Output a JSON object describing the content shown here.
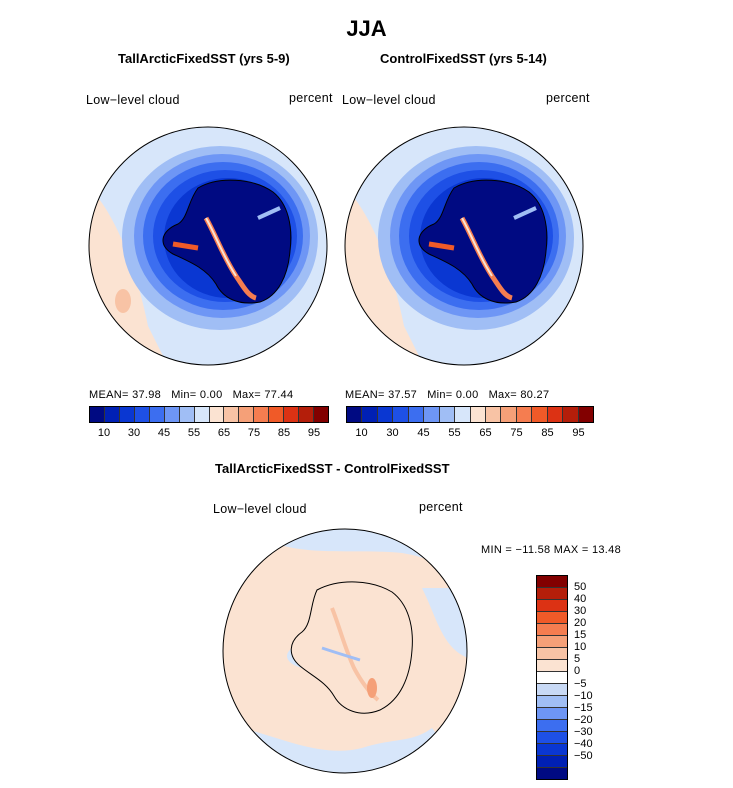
{
  "page": {
    "title": "JJA",
    "diff_title": "TallArcticFixedSST - ControlFixedSST"
  },
  "panels": [
    {
      "title": "TallArcticFixedSST (yrs 5-9)",
      "left_label": "Low−level cloud",
      "right_label": "percent",
      "stats": {
        "mean_label": "MEAN=",
        "mean": "37.98",
        "min_label": "Min=",
        "min": "0.00",
        "max_label": "Max=",
        "max": "77.44"
      }
    },
    {
      "title": "ControlFixedSST (yrs 5-14)",
      "left_label": "Low−level cloud",
      "right_label": "percent",
      "stats": {
        "mean_label": "MEAN=",
        "mean": "37.57",
        "min_label": "Min=",
        "min": "0.00",
        "max_label": "Max=",
        "max": "80.27"
      }
    }
  ],
  "diff_panel": {
    "left_label": "Low−level cloud",
    "right_label": "percent",
    "minmax_text": "MIN = −11.58 MAX =  13.48"
  },
  "colorbar_main": {
    "colors": [
      "#000a82",
      "#0020b4",
      "#0a37d2",
      "#1e50e6",
      "#3c6ef0",
      "#6e96f5",
      "#a0bef5",
      "#d7e6fa",
      "#fbe3d2",
      "#f8c3a5",
      "#f5a078",
      "#f57d50",
      "#f05a28",
      "#dc3214",
      "#b41e0a",
      "#820000"
    ],
    "tick_labels": [
      "10",
      "30",
      "45",
      "55",
      "65",
      "75",
      "85",
      "95"
    ]
  },
  "colorbar_diff": {
    "colors": [
      "#820000",
      "#b41e0a",
      "#dc3214",
      "#f05a28",
      "#f57d50",
      "#f5a078",
      "#f8c3a5",
      "#fbe3d2",
      "#ffffff",
      "#c8d9f5",
      "#a0bef5",
      "#6e96f5",
      "#3c6ef0",
      "#1e50e6",
      "#0a37d2",
      "#0020b4",
      "#000a82"
    ],
    "tick_labels": [
      "50",
      "40",
      "30",
      "20",
      "15",
      "10",
      "5",
      "0",
      "−5",
      "−10",
      "−15",
      "−20",
      "−30",
      "−40",
      "−50"
    ]
  },
  "chart_data": [
    {
      "type": "heatmap",
      "title": "TallArcticFixedSST (yrs 5-9)",
      "variable": "Low−level cloud",
      "units": "percent",
      "projection": "south polar stereographic",
      "mean": 37.98,
      "min": 0.0,
      "max": 77.44,
      "contour_levels": [
        5,
        10,
        15,
        20,
        25,
        30,
        35,
        40,
        45,
        50,
        55,
        60,
        65,
        70,
        75,
        80,
        85,
        90,
        95
      ]
    },
    {
      "type": "heatmap",
      "title": "ControlFixedSST (yrs 5-14)",
      "variable": "Low−level cloud",
      "units": "percent",
      "projection": "south polar stereographic",
      "mean": 37.57,
      "min": 0.0,
      "max": 80.27,
      "contour_levels": [
        5,
        10,
        15,
        20,
        25,
        30,
        35,
        40,
        45,
        50,
        55,
        60,
        65,
        70,
        75,
        80,
        85,
        90,
        95
      ]
    },
    {
      "type": "heatmap",
      "title": "TallArcticFixedSST - ControlFixedSST",
      "variable": "Low−level cloud",
      "units": "percent",
      "projection": "south polar stereographic",
      "min": -11.58,
      "max": 13.48,
      "contour_levels": [
        -50,
        -40,
        -30,
        -20,
        -15,
        -10,
        -5,
        0,
        5,
        10,
        15,
        20,
        30,
        40,
        50
      ]
    }
  ]
}
